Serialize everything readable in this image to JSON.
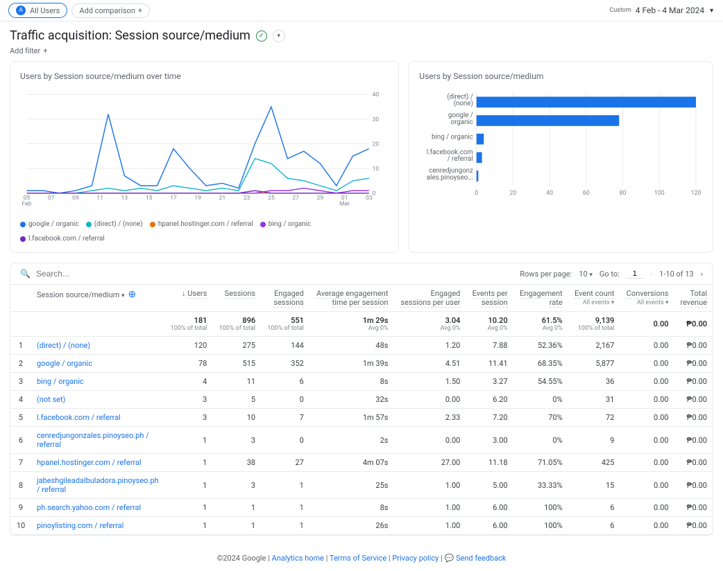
{
  "header": {
    "all_users_badge": "A",
    "all_users_label": "All Users",
    "add_comparison": "Add comparison",
    "date_custom": "Custom",
    "date_range": "4 Feb - 4 Mar 2024"
  },
  "title": "Traffic acquisition: Session source/medium",
  "add_filter": "Add filter",
  "charts": {
    "line": {
      "title": "Users by Session source/medium over time",
      "x_labels": [
        "05\nFeb",
        "07",
        "09",
        "11",
        "13",
        "15",
        "17",
        "19",
        "21",
        "23",
        "25",
        "27",
        "29",
        "01\nMar",
        "03"
      ],
      "y_max": 40,
      "y_ticks": [
        0,
        10,
        20,
        30,
        40
      ],
      "series": [
        {
          "name": "google / organic",
          "color": "#1a73e8",
          "values": [
            1,
            1,
            0,
            1,
            3,
            32,
            7,
            3,
            3,
            18,
            10,
            3,
            4,
            2,
            20,
            35,
            14,
            17,
            12,
            3,
            15,
            18
          ]
        },
        {
          "name": "(direct) / (none)",
          "color": "#12b5cb",
          "values": [
            0,
            0,
            0,
            0,
            1,
            2,
            1,
            2,
            1,
            3,
            2,
            1,
            2,
            1,
            14,
            12,
            6,
            5,
            3,
            1,
            5,
            6
          ]
        },
        {
          "name": "hpanel.hostinger.com / referral",
          "color": "#e8710a",
          "values": [
            0,
            0,
            0,
            0,
            0,
            0,
            0,
            0,
            0,
            0,
            0,
            0,
            0,
            0,
            0,
            0,
            0,
            0,
            0,
            0,
            0,
            0
          ]
        },
        {
          "name": "bing / organic",
          "color": "#9334e6",
          "values": [
            0,
            0,
            0,
            0,
            0,
            0,
            0,
            0,
            0,
            0,
            0,
            0,
            0,
            0,
            0,
            1,
            1,
            2,
            1,
            0,
            1,
            1
          ]
        },
        {
          "name": "l.facebook.com / referral",
          "color": "#7627bb",
          "values": [
            0,
            0,
            0,
            0,
            0,
            0,
            0,
            0,
            0,
            0,
            0,
            0,
            0,
            0,
            1,
            0,
            0,
            0,
            0,
            0,
            0,
            0
          ]
        }
      ]
    },
    "bar": {
      "title": "Users by Session source/medium",
      "x_max": 120,
      "x_ticks": [
        0,
        20,
        40,
        60,
        80,
        100,
        120
      ],
      "color": "#1a73e8",
      "bars": [
        {
          "label": "(direct) /\n(none)",
          "value": 120
        },
        {
          "label": "google /\norganic",
          "value": 78
        },
        {
          "label": "bing / organic",
          "value": 4
        },
        {
          "label": "l.facebook.com\n/ referral",
          "value": 3
        },
        {
          "label": "cenredjungonz\nales.pinoyseo...",
          "value": 1
        }
      ]
    }
  },
  "table": {
    "search_placeholder": "Search...",
    "rows_per_page_label": "Rows per page:",
    "rows_per_page": "10",
    "goto_label": "Go to:",
    "goto_value": "1",
    "range": "1-10 of 13",
    "dimension_label": "Session source/medium",
    "columns": [
      {
        "label": "Users",
        "sort": true
      },
      {
        "label": "Sessions"
      },
      {
        "label": "Engaged\nsessions"
      },
      {
        "label": "Average engagement\ntime per session"
      },
      {
        "label": "Engaged\nsessions per user"
      },
      {
        "label": "Events per\nsession"
      },
      {
        "label": "Engagement\nrate"
      },
      {
        "label": "Event count",
        "sub": "All events"
      },
      {
        "label": "Conversions",
        "sub": "All events"
      },
      {
        "label": "Total\nrevenue"
      }
    ],
    "totals": [
      "181",
      "896",
      "551",
      "1m 29s",
      "3.04",
      "10.20",
      "61.5%",
      "9,139",
      "0.00",
      "₱0.00"
    ],
    "totals_sub": [
      "100% of total",
      "100% of total",
      "100% of total",
      "Avg 0%",
      "Avg 0%",
      "Avg 0%",
      "Avg 0%",
      "100% of total",
      "",
      ""
    ],
    "rows": [
      {
        "n": "1",
        "dim": "(direct) / (none)",
        "cells": [
          "120",
          "275",
          "144",
          "48s",
          "1.20",
          "7.88",
          "52.36%",
          "2,167",
          "0.00",
          "₱0.00"
        ]
      },
      {
        "n": "2",
        "dim": "google / organic",
        "cells": [
          "78",
          "515",
          "352",
          "1m 39s",
          "4.51",
          "11.41",
          "68.35%",
          "5,877",
          "0.00",
          "₱0.00"
        ]
      },
      {
        "n": "3",
        "dim": "bing / organic",
        "cells": [
          "4",
          "11",
          "6",
          "8s",
          "1.50",
          "3.27",
          "54.55%",
          "36",
          "0.00",
          "₱0.00"
        ]
      },
      {
        "n": "4",
        "dim": "(not set)",
        "cells": [
          "3",
          "5",
          "0",
          "32s",
          "0.00",
          "6.20",
          "0%",
          "31",
          "0.00",
          "₱0.00"
        ]
      },
      {
        "n": "5",
        "dim": "l.facebook.com / referral",
        "cells": [
          "3",
          "10",
          "7",
          "1m 57s",
          "2.33",
          "7.20",
          "70%",
          "72",
          "0.00",
          "₱0.00"
        ]
      },
      {
        "n": "6",
        "dim": "cenredjungonzales.pinoyseo.ph / referral",
        "cells": [
          "1",
          "3",
          "0",
          "2s",
          "0.00",
          "3.00",
          "0%",
          "9",
          "0.00",
          "₱0.00"
        ]
      },
      {
        "n": "7",
        "dim": "hpanel.hostinger.com / referral",
        "cells": [
          "1",
          "38",
          "27",
          "4m 07s",
          "27.00",
          "11.18",
          "71.05%",
          "425",
          "0.00",
          "₱0.00"
        ]
      },
      {
        "n": "8",
        "dim": "jabeshgileadalbuladora.pinoyseo.ph / referral",
        "cells": [
          "1",
          "3",
          "1",
          "25s",
          "1.00",
          "5.00",
          "33.33%",
          "15",
          "0.00",
          "₱0.00"
        ]
      },
      {
        "n": "9",
        "dim": "ph.search.yahoo.com / referral",
        "cells": [
          "1",
          "1",
          "1",
          "8s",
          "1.00",
          "6.00",
          "100%",
          "6",
          "0.00",
          "₱0.00"
        ]
      },
      {
        "n": "10",
        "dim": "pinoylisting.com / referral",
        "cells": [
          "1",
          "1",
          "1",
          "26s",
          "1.00",
          "6.00",
          "100%",
          "6",
          "0.00",
          "₱0.00"
        ]
      }
    ]
  },
  "footer": {
    "copyright": "©2024 Google",
    "links": [
      "Analytics home",
      "Terms of Service",
      "Privacy policy"
    ],
    "feedback": "Send feedback"
  }
}
